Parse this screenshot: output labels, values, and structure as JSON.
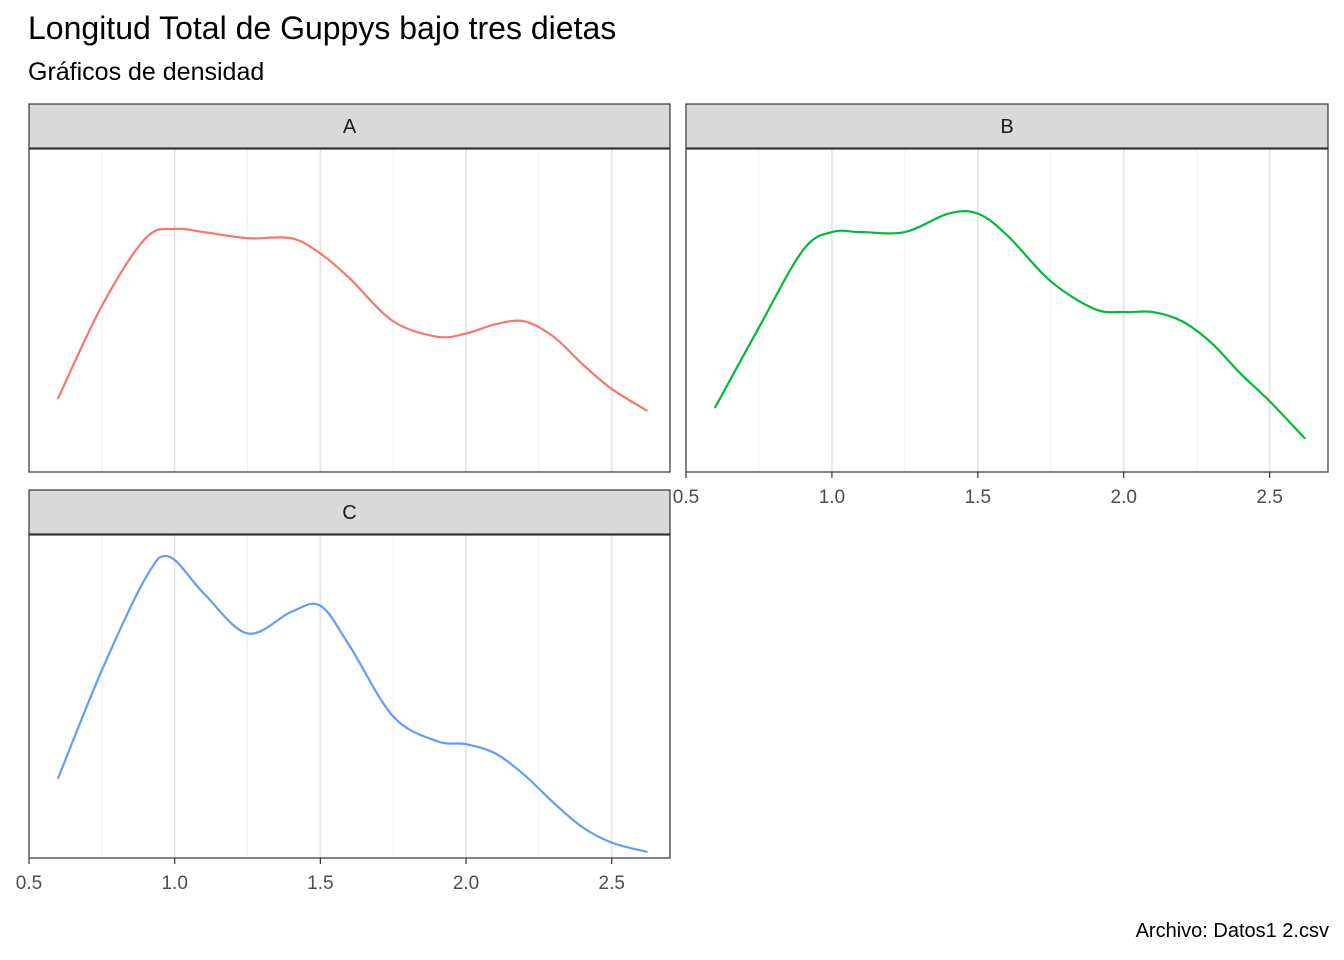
{
  "title": "Longitud Total de Guppys bajo tres dietas",
  "subtitle": "Gráficos de densidad",
  "caption": "Archivo: Datos1 2.csv",
  "chart_data": {
    "type": "line",
    "kind": "faceted density curves",
    "title": "Longitud Total de Guppys bajo tres dietas",
    "subtitle": "Gráficos de densidad",
    "caption": "Archivo: Datos1 2.csv",
    "xlabel": "",
    "ylabel": "",
    "xlim": [
      0.5,
      2.7
    ],
    "x_ticks": [
      "0.5",
      "1.0",
      "1.5",
      "2.0",
      "2.5"
    ],
    "x_tick_values": [
      0.5,
      1.0,
      1.5,
      2.0,
      2.5
    ],
    "y_axis_shown": false,
    "grid": "vertical major and minor lines",
    "legend": "none",
    "ylim": [
      0,
      1.05
    ],
    "panels": [
      {
        "strip": "A",
        "color": "#F8766D",
        "x": [
          0.6,
          0.75,
          0.9,
          1.0,
          1.1,
          1.25,
          1.4,
          1.5,
          1.6,
          1.75,
          1.9,
          2.0,
          2.1,
          2.2,
          2.3,
          2.4,
          2.5,
          2.62
        ],
        "y": [
          0.24,
          0.54,
          0.76,
          0.79,
          0.78,
          0.76,
          0.76,
          0.71,
          0.63,
          0.49,
          0.44,
          0.45,
          0.48,
          0.49,
          0.44,
          0.35,
          0.27,
          0.2
        ]
      },
      {
        "strip": "B",
        "color": "#00BA38",
        "x": [
          0.6,
          0.75,
          0.9,
          1.0,
          1.1,
          1.25,
          1.4,
          1.5,
          1.6,
          1.75,
          1.9,
          2.0,
          2.1,
          2.2,
          2.3,
          2.4,
          2.5,
          2.62
        ],
        "y": [
          0.21,
          0.47,
          0.72,
          0.78,
          0.78,
          0.78,
          0.84,
          0.84,
          0.77,
          0.62,
          0.53,
          0.52,
          0.52,
          0.49,
          0.42,
          0.32,
          0.23,
          0.11
        ]
      },
      {
        "strip": "C",
        "color": "#619CFF",
        "x": [
          0.6,
          0.75,
          0.9,
          0.98,
          1.1,
          1.25,
          1.4,
          1.5,
          1.6,
          1.75,
          1.9,
          2.0,
          2.1,
          2.2,
          2.3,
          2.4,
          2.5,
          2.62
        ],
        "y": [
          0.26,
          0.61,
          0.91,
          0.98,
          0.86,
          0.73,
          0.8,
          0.82,
          0.69,
          0.46,
          0.38,
          0.37,
          0.34,
          0.27,
          0.18,
          0.1,
          0.05,
          0.02
        ]
      }
    ]
  }
}
